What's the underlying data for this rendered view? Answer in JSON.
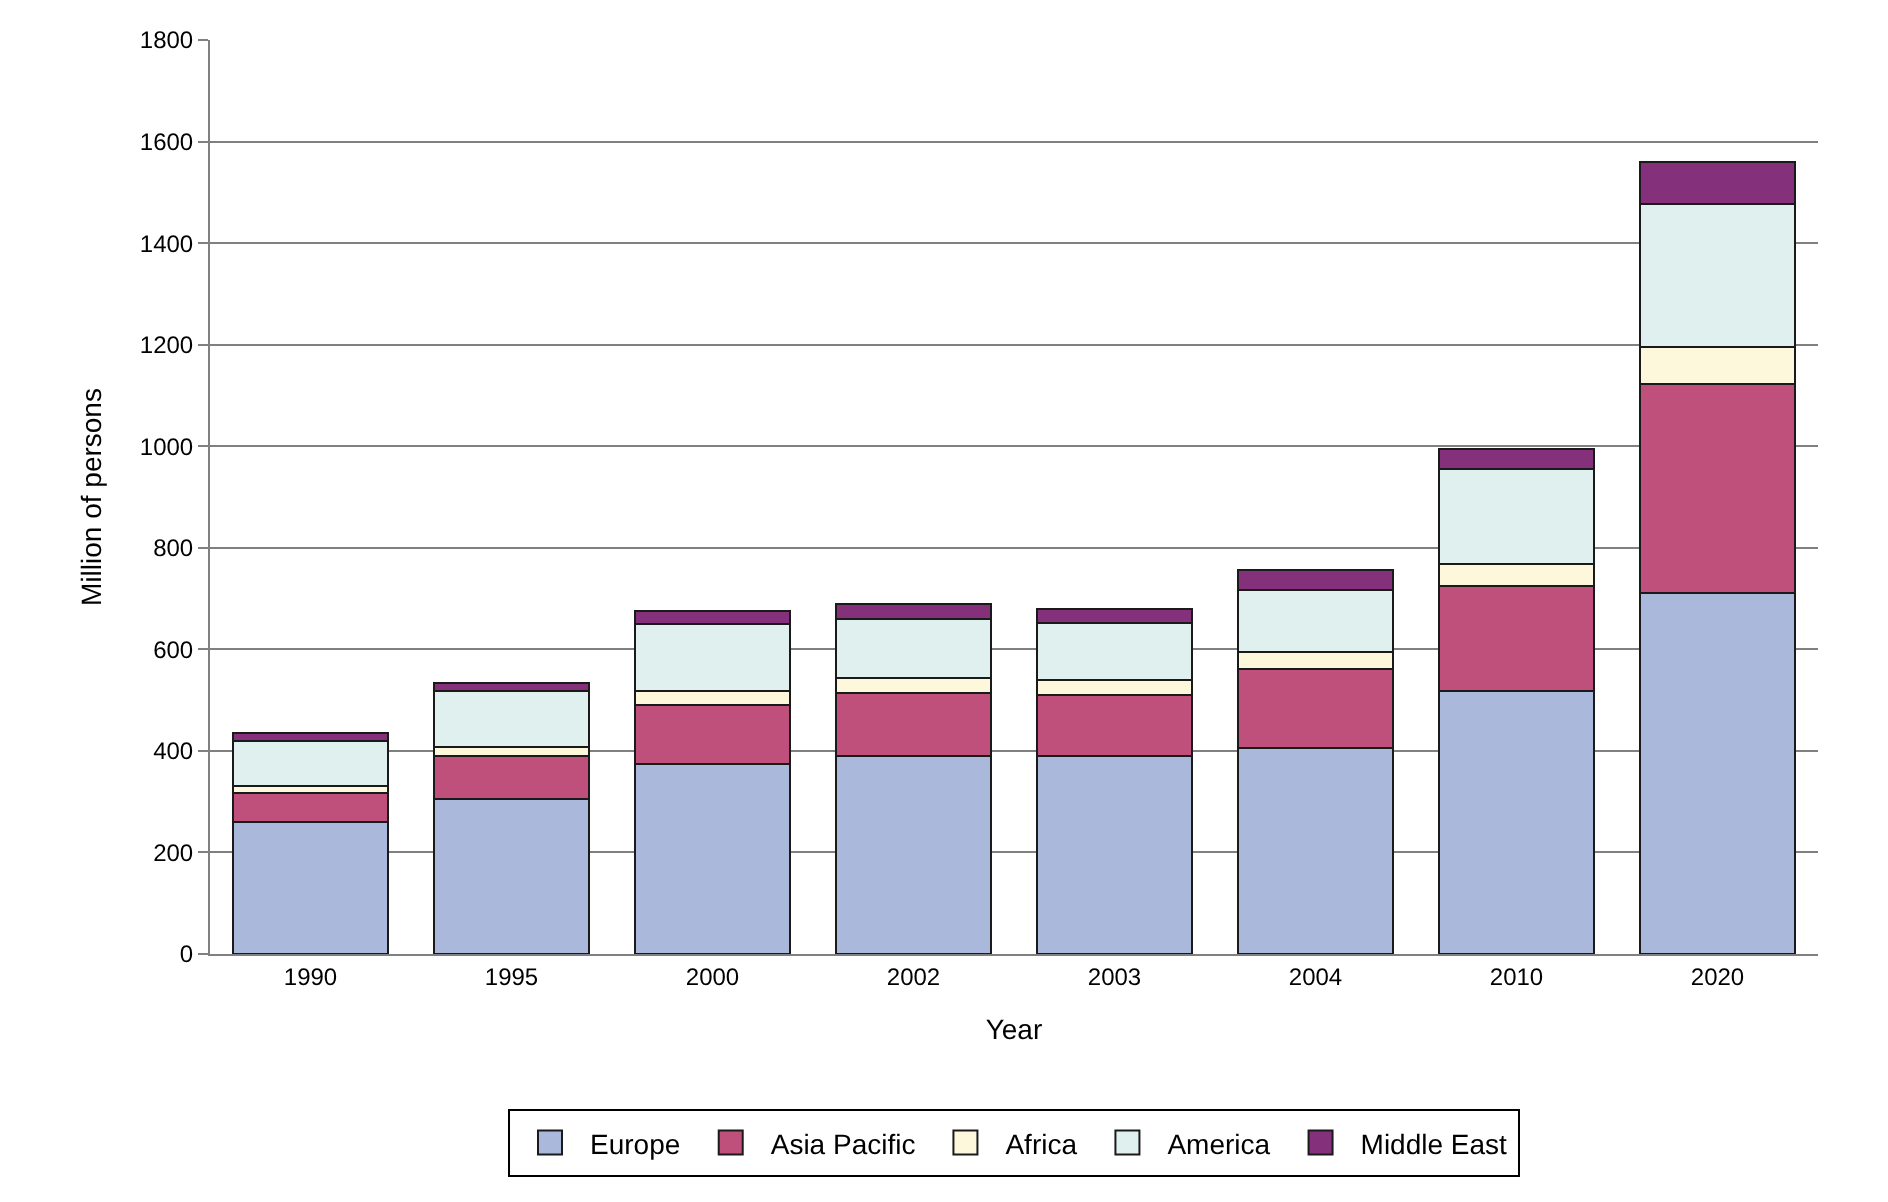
{
  "chart_data": {
    "type": "bar",
    "stacked": true,
    "xlabel": "Year",
    "ylabel": "Million of persons",
    "categories": [
      "1990",
      "1995",
      "2000",
      "2002",
      "2003",
      "2004",
      "2010",
      "2020"
    ],
    "series": [
      {
        "name": "Europe",
        "color": "#aab8dc",
        "values": [
          259,
          305,
          374,
          390,
          390,
          406,
          518,
          710
        ]
      },
      {
        "name": "Asia Pacific",
        "color": "#bf4f7b",
        "values": [
          59,
          84,
          117,
          125,
          120,
          156,
          206,
          413
        ]
      },
      {
        "name": "Africa",
        "color": "#fdf8dc",
        "values": [
          13,
          18,
          26,
          28,
          29,
          33,
          44,
          72
        ]
      },
      {
        "name": "America",
        "color": "#e0f0ef",
        "values": [
          88,
          111,
          133,
          117,
          112,
          121,
          187,
          282
        ]
      },
      {
        "name": "Middle East",
        "color": "#84307a",
        "values": [
          16,
          16,
          25,
          30,
          29,
          41,
          40,
          83
        ]
      }
    ],
    "ylim": [
      0,
      1800
    ],
    "yticks": [
      0,
      200,
      400,
      600,
      800,
      1000,
      1200,
      1400,
      1600,
      1800
    ],
    "grid": "y",
    "legend": "bottom"
  }
}
